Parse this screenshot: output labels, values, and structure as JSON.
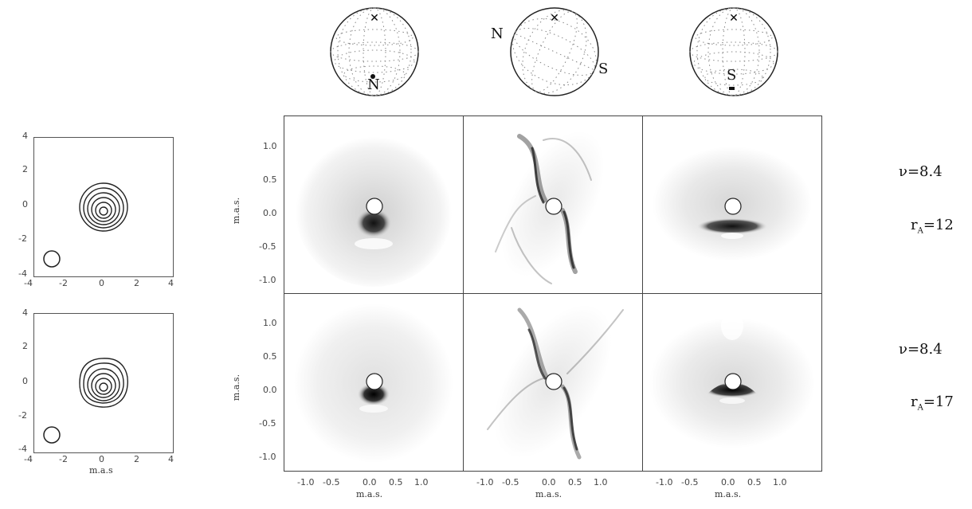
{
  "left_plots": {
    "ticks": [
      "4",
      "2",
      "0",
      "-2",
      "-4"
    ],
    "xticks": [
      "-4",
      "-2",
      "0",
      "2",
      "4"
    ],
    "xlabel": "m.a.s"
  },
  "main": {
    "yticks": [
      "1.0",
      "0.5",
      "0.0",
      "-0.5",
      "-1.0"
    ],
    "xticks": [
      "-1.0",
      "-0.5",
      "0.0",
      "0.5",
      "1.0"
    ],
    "xlabel": "m.a.s.",
    "ylabel": "m.a.s."
  },
  "globes": [
    {
      "pole_label": "N"
    },
    {
      "pole_label_left": "N",
      "pole_label_right": "S"
    },
    {
      "pole_label": "S"
    }
  ],
  "rows": [
    {
      "nu": "ν=8.4",
      "ra_label": "r",
      "ra_sub": "A",
      "ra_value": "=12"
    },
    {
      "nu": "ν=8.4",
      "ra_label": "r",
      "ra_sub": "A",
      "ra_value": "=17"
    }
  ]
}
